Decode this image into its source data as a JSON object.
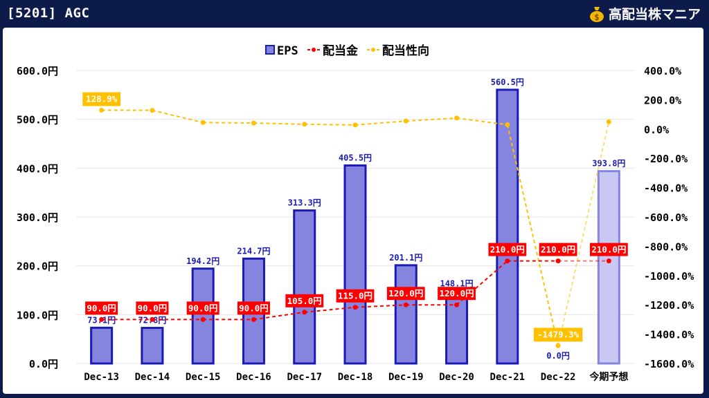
{
  "header": {
    "title": "[5201] AGC",
    "brand": "高配当株マニア",
    "brand_icon": "money-bag-icon"
  },
  "colors": {
    "background": "#0d1b4b",
    "eps_fill": "#8585e0",
    "eps_stroke": "#1a1ab5",
    "eps_forecast_fill": "#c8c8f2",
    "eps_forecast_stroke": "#8585e0",
    "eps_label": "#1a1ab5",
    "dividend": "#ff0000",
    "payout": "#ffc000"
  },
  "chart_data": {
    "type": "bar",
    "categories": [
      "Dec-13",
      "Dec-14",
      "Dec-15",
      "Dec-16",
      "Dec-17",
      "Dec-18",
      "Dec-19",
      "Dec-20",
      "Dec-21",
      "Dec-22",
      "今期予想"
    ],
    "ylim": [
      0,
      600
    ],
    "y2lim": [
      -1600,
      400
    ],
    "y_ticks": [
      "0.0円",
      "100.0円",
      "200.0円",
      "300.0円",
      "400.0円",
      "500.0円",
      "600.0円"
    ],
    "y_tick_values": [
      0,
      100,
      200,
      300,
      400,
      500,
      600
    ],
    "y2_ticks": [
      "-1600.0%",
      "-1400.0%",
      "-1200.0%",
      "-1000.0%",
      "-800.0%",
      "-600.0%",
      "-400.0%",
      "-200.0%",
      "0.0%",
      "200.0%",
      "400.0%"
    ],
    "y2_tick_values": [
      -1600,
      -1400,
      -1200,
      -1000,
      -800,
      -600,
      -400,
      -200,
      0,
      200,
      400
    ],
    "legend": {
      "position": "top",
      "items": [
        "EPS",
        "配当金",
        "配当性向"
      ]
    },
    "grid": true,
    "series": [
      {
        "name": "EPS",
        "type": "bar",
        "axis": "left",
        "values": [
          73.1,
          72.8,
          194.2,
          214.7,
          313.3,
          405.5,
          201.1,
          148.1,
          560.5,
          0.0,
          393.8
        ],
        "labels": [
          "73.1円",
          "72.8円",
          "194.2円",
          "214.7円",
          "313.3円",
          "405.5円",
          "201.1円",
          "148.1円",
          "560.5円",
          "0.0円",
          "393.8円"
        ]
      },
      {
        "name": "配当金",
        "type": "line",
        "axis": "left",
        "values": [
          90,
          90,
          90,
          90,
          105,
          115,
          120,
          120,
          210,
          210,
          210
        ],
        "labels": [
          "90.0円",
          "90.0円",
          "90.0円",
          "90.0円",
          "105.0円",
          "115.0円",
          "120.0円",
          "120.0円",
          "210.0円",
          "210.0円",
          "210.0円"
        ]
      },
      {
        "name": "配当性向",
        "type": "line",
        "axis": "right",
        "values": [
          128.9,
          128,
          45,
          41,
          33,
          28,
          55,
          75,
          30,
          -1479.3,
          50
        ],
        "labels": [
          "128.9%",
          "",
          "",
          "",
          "",
          "",
          "",
          "",
          "",
          "-1479.3%",
          ""
        ]
      }
    ]
  }
}
